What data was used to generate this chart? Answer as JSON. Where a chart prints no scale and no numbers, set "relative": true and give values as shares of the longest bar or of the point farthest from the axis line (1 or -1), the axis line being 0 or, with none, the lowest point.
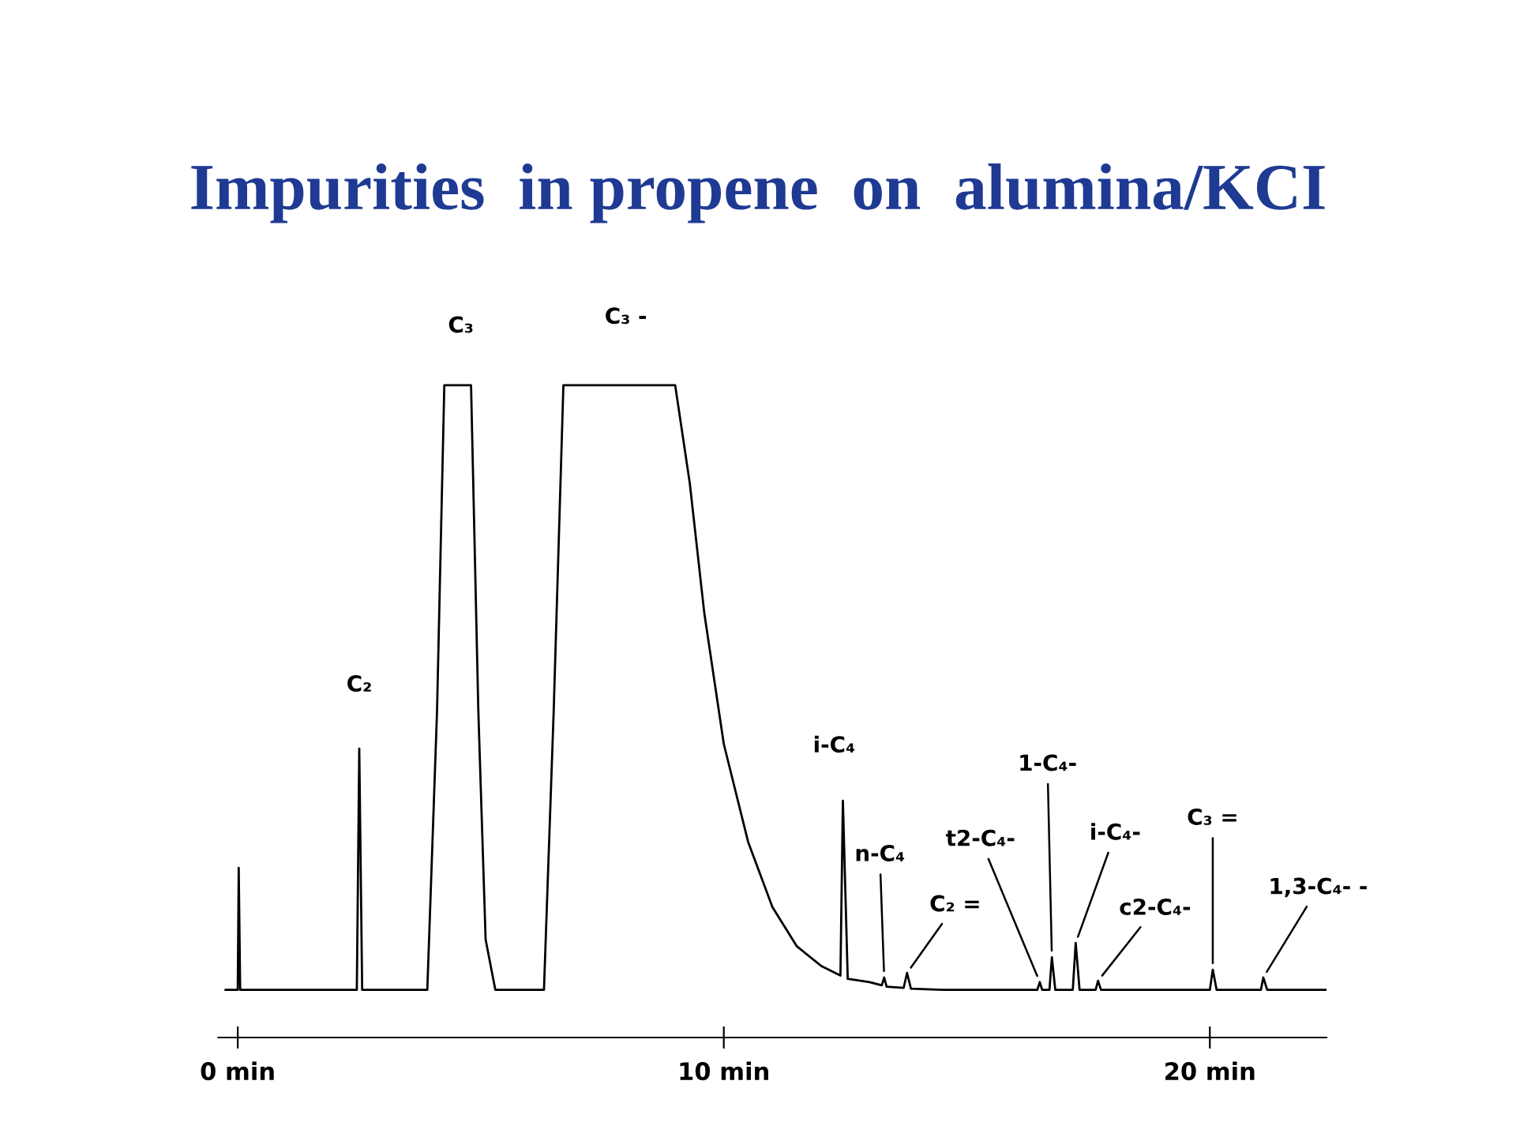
{
  "chart_data": {
    "type": "line",
    "title": "Impurities  in propene  on  alumina/KCI",
    "relative": true,
    "x": [
      -0.25,
      0,
      0.02,
      0.05,
      2.45,
      2.5,
      2.56,
      3.9,
      4.1,
      4.25,
      4.8,
      4.95,
      5.1,
      5.3,
      6.3,
      6.5,
      6.7,
      9.0,
      9.3,
      9.6,
      10.0,
      10.5,
      11.0,
      11.5,
      12.0,
      12.4,
      12.45,
      12.55,
      13.0,
      13.25,
      13.3,
      13.35,
      13.7,
      13.77,
      13.85,
      14.5,
      16.45,
      16.5,
      16.55,
      16.7,
      16.75,
      16.82,
      17.18,
      17.24,
      17.32,
      17.65,
      17.7,
      17.76,
      20.0,
      20.06,
      20.14,
      21.05,
      21.1,
      21.18,
      22.4
    ],
    "series": [
      {
        "color": "#000000",
        "values": [
          0.073,
          0.073,
          0.26,
          0.073,
          0.073,
          0.443,
          0.073,
          0.073,
          0.5,
          1.0,
          1.0,
          0.5,
          0.15,
          0.073,
          0.073,
          0.5,
          1.0,
          1.0,
          0.85,
          0.65,
          0.45,
          0.3,
          0.2,
          0.14,
          0.11,
          0.095,
          0.363,
          0.09,
          0.085,
          0.08,
          0.092,
          0.078,
          0.076,
          0.099,
          0.075,
          0.073,
          0.073,
          0.085,
          0.073,
          0.073,
          0.123,
          0.073,
          0.073,
          0.145,
          0.073,
          0.073,
          0.087,
          0.073,
          0.073,
          0.104,
          0.073,
          0.073,
          0.092,
          0.073,
          0.073
        ]
      }
    ],
    "xlim": [
      -0.4,
      22.4
    ],
    "xticks": [
      {
        "value": 0,
        "label": "0 min"
      },
      {
        "value": 10,
        "label": "10 min"
      },
      {
        "value": 20,
        "label": "20 min"
      }
    ],
    "tick_labels": "x",
    "grid": false,
    "legend": false,
    "annotations": [
      {
        "text": "C₃",
        "x": 4.5,
        "y": 1.0
      },
      {
        "text": "C₃ -",
        "x": 7.85,
        "y": 1.0
      },
      {
        "text": "C₂",
        "x": 2.5,
        "y": 0.443
      },
      {
        "text": "i-C₄",
        "x": 12.45,
        "y": 0.363
      },
      {
        "text": "n-C₄",
        "x": 13.3,
        "y": 0.092
      },
      {
        "text": "C₂ =",
        "x": 13.77,
        "y": 0.099
      },
      {
        "text": "t2-C₄-",
        "x": 16.5,
        "y": 0.085
      },
      {
        "text": "1-C₄-",
        "x": 16.75,
        "y": 0.123
      },
      {
        "text": "i-C₄-",
        "x": 17.24,
        "y": 0.145
      },
      {
        "text": "c2-C₄-",
        "x": 17.7,
        "y": 0.087
      },
      {
        "text": "C₃ =",
        "x": 20.06,
        "y": 0.104
      },
      {
        "text": "1,3-C₄- -",
        "x": 21.1,
        "y": 0.092
      }
    ]
  }
}
